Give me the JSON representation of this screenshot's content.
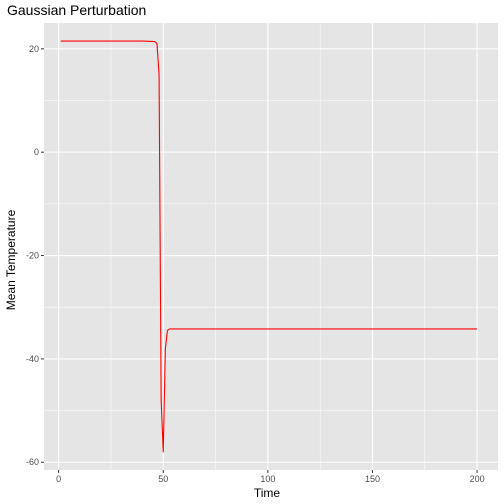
{
  "chart_data": {
    "type": "line",
    "title": "Gaussian Perturbation",
    "xlabel": "Time",
    "ylabel": "Mean Temperature",
    "xlim": [
      -7,
      210
    ],
    "ylim": [
      -61.5,
      25
    ],
    "x_ticks": [
      0,
      50,
      100,
      150,
      200
    ],
    "y_ticks": [
      -60,
      -40,
      -20,
      0,
      20
    ],
    "x_tick_labels": [
      "0",
      "50",
      "100",
      "150",
      "200"
    ],
    "y_tick_labels": [
      "-60",
      "-40",
      "-20",
      "0",
      "20"
    ],
    "grid": true,
    "legend": "none",
    "series": [
      {
        "color": "#ff0000",
        "x": [
          1,
          10,
          20,
          30,
          40,
          46,
          47,
          48,
          49,
          50,
          51,
          52,
          53,
          60,
          100,
          150,
          200
        ],
        "y": [
          21.5,
          21.5,
          21.5,
          21.5,
          21.5,
          21.4,
          21.0,
          15.0,
          -48.0,
          -58.0,
          -38.0,
          -34.5,
          -34.2,
          -34.2,
          -34.2,
          -34.2,
          -34.2
        ]
      }
    ]
  },
  "colors": {
    "panel_background": "#e5e5e5",
    "grid_major": "#ffffff",
    "line": "#ff0000"
  }
}
